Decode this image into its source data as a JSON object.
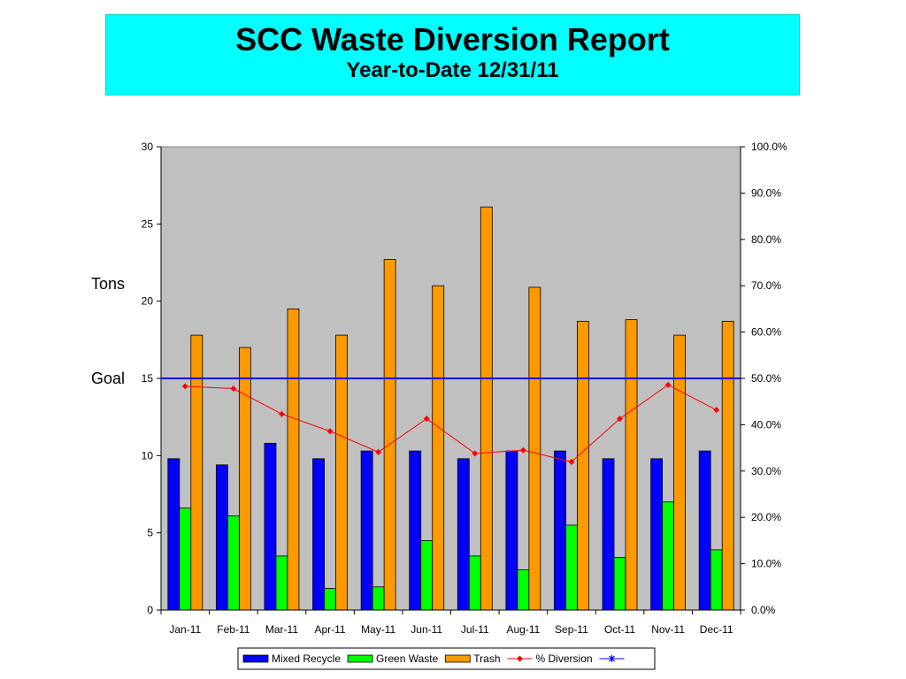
{
  "header": {
    "title": "SCC Waste Diversion Report",
    "subtitle": "Year-to-Date 12/31/11"
  },
  "side_labels": {
    "tons": "Tons",
    "goal": "Goal"
  },
  "chart_data": {
    "type": "bar",
    "categories": [
      "Jan-11",
      "Feb-11",
      "Mar-11",
      "Apr-11",
      "May-11",
      "Jun-11",
      "Jul-11",
      "Aug-11",
      "Sep-11",
      "Oct-11",
      "Nov-11",
      "Dec-11"
    ],
    "series": [
      {
        "name": "Mixed Recycle",
        "type": "bar",
        "axis": "left",
        "color": "#0000ff",
        "values": [
          9.8,
          9.4,
          10.8,
          9.8,
          10.3,
          10.3,
          9.8,
          10.3,
          10.3,
          9.8,
          9.8,
          10.3
        ]
      },
      {
        "name": "Green Waste",
        "type": "bar",
        "axis": "left",
        "color": "#00ff00",
        "values": [
          6.6,
          6.1,
          3.5,
          1.4,
          1.5,
          4.5,
          3.5,
          2.6,
          5.5,
          3.4,
          7.0,
          3.9
        ]
      },
      {
        "name": "Trash",
        "type": "bar",
        "axis": "left",
        "color": "#ff9900",
        "values": [
          17.8,
          17.0,
          19.5,
          17.8,
          22.7,
          21.0,
          26.1,
          20.9,
          18.7,
          18.8,
          17.8,
          18.7
        ]
      },
      {
        "name": "% Diversion",
        "type": "line",
        "axis": "right",
        "color": "#ff0000",
        "marker": "diamond",
        "values": [
          48.3,
          47.8,
          42.3,
          38.6,
          34.1,
          41.3,
          33.8,
          34.5,
          32.0,
          41.3,
          48.6,
          43.2
        ]
      },
      {
        "name": "",
        "type": "line",
        "axis": "right",
        "color": "#0000ff",
        "marker": "star",
        "values": [
          50,
          50,
          50,
          50,
          50,
          50,
          50,
          50,
          50,
          50,
          50,
          50
        ]
      }
    ],
    "y_left": {
      "min": 0,
      "max": 30,
      "ticks": [
        "0",
        "5",
        "10",
        "15",
        "20",
        "25",
        "30"
      ]
    },
    "y_right": {
      "min": 0,
      "max": 100,
      "ticks": [
        "0.0%",
        "10.0%",
        "20.0%",
        "30.0%",
        "40.0%",
        "50.0%",
        "60.0%",
        "70.0%",
        "80.0%",
        "90.0%",
        "100.0%"
      ]
    },
    "plot_background": "#c0c0c0",
    "grid": false,
    "legend": "bottom"
  }
}
